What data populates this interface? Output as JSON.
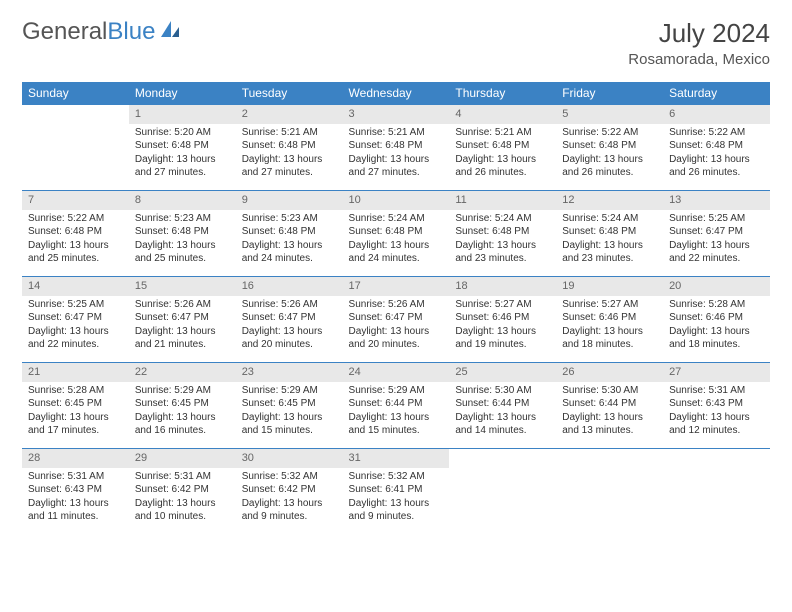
{
  "logo": {
    "text_gray": "General",
    "text_blue": "Blue"
  },
  "header": {
    "month": "July 2024",
    "location": "Rosamorada, Mexico"
  },
  "colors": {
    "accent": "#3b82c4",
    "header_bg": "#3b82c4",
    "header_text": "#ffffff",
    "daynum_bg": "#e8e8e8",
    "daynum_text": "#666666",
    "body_text": "#333333",
    "logo_gray": "#555555"
  },
  "weekdays": [
    "Sunday",
    "Monday",
    "Tuesday",
    "Wednesday",
    "Thursday",
    "Friday",
    "Saturday"
  ],
  "start_offset": 1,
  "days": [
    {
      "n": 1,
      "sunrise": "5:20 AM",
      "sunset": "6:48 PM",
      "daylight": "13 hours and 27 minutes."
    },
    {
      "n": 2,
      "sunrise": "5:21 AM",
      "sunset": "6:48 PM",
      "daylight": "13 hours and 27 minutes."
    },
    {
      "n": 3,
      "sunrise": "5:21 AM",
      "sunset": "6:48 PM",
      "daylight": "13 hours and 27 minutes."
    },
    {
      "n": 4,
      "sunrise": "5:21 AM",
      "sunset": "6:48 PM",
      "daylight": "13 hours and 26 minutes."
    },
    {
      "n": 5,
      "sunrise": "5:22 AM",
      "sunset": "6:48 PM",
      "daylight": "13 hours and 26 minutes."
    },
    {
      "n": 6,
      "sunrise": "5:22 AM",
      "sunset": "6:48 PM",
      "daylight": "13 hours and 26 minutes."
    },
    {
      "n": 7,
      "sunrise": "5:22 AM",
      "sunset": "6:48 PM",
      "daylight": "13 hours and 25 minutes."
    },
    {
      "n": 8,
      "sunrise": "5:23 AM",
      "sunset": "6:48 PM",
      "daylight": "13 hours and 25 minutes."
    },
    {
      "n": 9,
      "sunrise": "5:23 AM",
      "sunset": "6:48 PM",
      "daylight": "13 hours and 24 minutes."
    },
    {
      "n": 10,
      "sunrise": "5:24 AM",
      "sunset": "6:48 PM",
      "daylight": "13 hours and 24 minutes."
    },
    {
      "n": 11,
      "sunrise": "5:24 AM",
      "sunset": "6:48 PM",
      "daylight": "13 hours and 23 minutes."
    },
    {
      "n": 12,
      "sunrise": "5:24 AM",
      "sunset": "6:48 PM",
      "daylight": "13 hours and 23 minutes."
    },
    {
      "n": 13,
      "sunrise": "5:25 AM",
      "sunset": "6:47 PM",
      "daylight": "13 hours and 22 minutes."
    },
    {
      "n": 14,
      "sunrise": "5:25 AM",
      "sunset": "6:47 PM",
      "daylight": "13 hours and 22 minutes."
    },
    {
      "n": 15,
      "sunrise": "5:26 AM",
      "sunset": "6:47 PM",
      "daylight": "13 hours and 21 minutes."
    },
    {
      "n": 16,
      "sunrise": "5:26 AM",
      "sunset": "6:47 PM",
      "daylight": "13 hours and 20 minutes."
    },
    {
      "n": 17,
      "sunrise": "5:26 AM",
      "sunset": "6:47 PM",
      "daylight": "13 hours and 20 minutes."
    },
    {
      "n": 18,
      "sunrise": "5:27 AM",
      "sunset": "6:46 PM",
      "daylight": "13 hours and 19 minutes."
    },
    {
      "n": 19,
      "sunrise": "5:27 AM",
      "sunset": "6:46 PM",
      "daylight": "13 hours and 18 minutes."
    },
    {
      "n": 20,
      "sunrise": "5:28 AM",
      "sunset": "6:46 PM",
      "daylight": "13 hours and 18 minutes."
    },
    {
      "n": 21,
      "sunrise": "5:28 AM",
      "sunset": "6:45 PM",
      "daylight": "13 hours and 17 minutes."
    },
    {
      "n": 22,
      "sunrise": "5:29 AM",
      "sunset": "6:45 PM",
      "daylight": "13 hours and 16 minutes."
    },
    {
      "n": 23,
      "sunrise": "5:29 AM",
      "sunset": "6:45 PM",
      "daylight": "13 hours and 15 minutes."
    },
    {
      "n": 24,
      "sunrise": "5:29 AM",
      "sunset": "6:44 PM",
      "daylight": "13 hours and 15 minutes."
    },
    {
      "n": 25,
      "sunrise": "5:30 AM",
      "sunset": "6:44 PM",
      "daylight": "13 hours and 14 minutes."
    },
    {
      "n": 26,
      "sunrise": "5:30 AM",
      "sunset": "6:44 PM",
      "daylight": "13 hours and 13 minutes."
    },
    {
      "n": 27,
      "sunrise": "5:31 AM",
      "sunset": "6:43 PM",
      "daylight": "13 hours and 12 minutes."
    },
    {
      "n": 28,
      "sunrise": "5:31 AM",
      "sunset": "6:43 PM",
      "daylight": "13 hours and 11 minutes."
    },
    {
      "n": 29,
      "sunrise": "5:31 AM",
      "sunset": "6:42 PM",
      "daylight": "13 hours and 10 minutes."
    },
    {
      "n": 30,
      "sunrise": "5:32 AM",
      "sunset": "6:42 PM",
      "daylight": "13 hours and 9 minutes."
    },
    {
      "n": 31,
      "sunrise": "5:32 AM",
      "sunset": "6:41 PM",
      "daylight": "13 hours and 9 minutes."
    }
  ],
  "labels": {
    "sunrise": "Sunrise:",
    "sunset": "Sunset:",
    "daylight": "Daylight:"
  }
}
